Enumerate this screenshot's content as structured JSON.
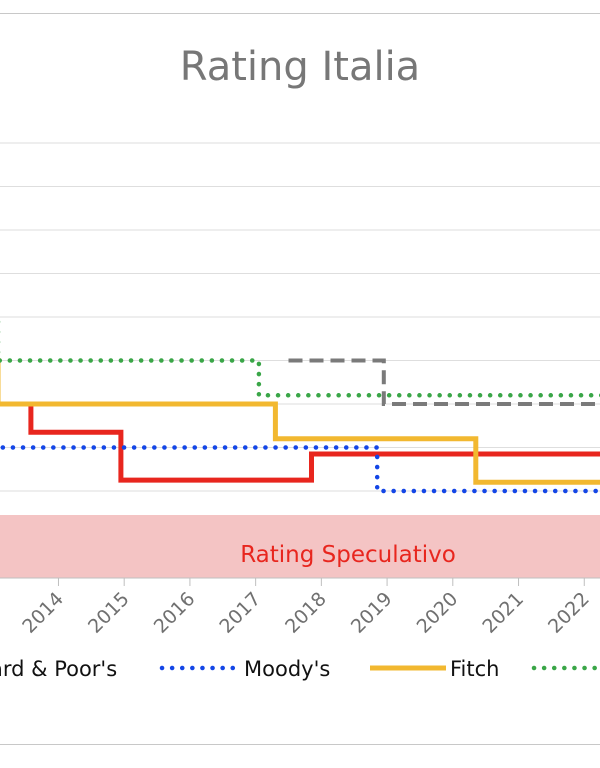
{
  "chart_data": {
    "type": "line",
    "title": "Rating Italia",
    "band": {
      "label": "Rating Speculativo",
      "color": "#f4c4c4"
    },
    "x_ticks": [
      "2014",
      "2015",
      "2016",
      "2017",
      "2018",
      "2019",
      "2020",
      "2021",
      "2022"
    ],
    "xlim": [
      2013.08,
      2022.27
    ],
    "ylim": [
      0,
      10
    ],
    "grid": true,
    "legend_position": "bottom",
    "series": [
      {
        "name": "Standard & Poor's",
        "legend_label": "ard & Poor's",
        "color": "#e8261e",
        "style": "solid",
        "points": [
          [
            2013.0,
            4.0
          ],
          [
            2013.58,
            4.0
          ],
          [
            2013.58,
            3.35
          ],
          [
            2014.95,
            3.35
          ],
          [
            2014.95,
            2.25
          ],
          [
            2017.85,
            2.25
          ],
          [
            2017.85,
            2.85
          ],
          [
            2022.3,
            2.85
          ]
        ]
      },
      {
        "name": "Moody's",
        "legend_label": "Moody's",
        "color": "#1446e6",
        "style": "dotted",
        "points": [
          [
            2013.0,
            3.0
          ],
          [
            2018.85,
            3.0
          ],
          [
            2018.85,
            2.0
          ],
          [
            2022.3,
            2.0
          ]
        ]
      },
      {
        "name": "Fitch",
        "legend_label": "Fitch",
        "color": "#f2b830",
        "style": "solid",
        "points": [
          [
            2013.0,
            5.0
          ],
          [
            2013.08,
            5.0
          ],
          [
            2013.08,
            4.0
          ],
          [
            2017.3,
            4.0
          ],
          [
            2017.3,
            3.2
          ],
          [
            2020.35,
            3.2
          ],
          [
            2020.35,
            2.2
          ],
          [
            2022.3,
            2.2
          ]
        ]
      },
      {
        "name": "",
        "legend_label": "",
        "color": "#3aa648",
        "style": "dotted",
        "points": [
          [
            2013.0,
            6.0
          ],
          [
            2013.08,
            6.0
          ],
          [
            2013.08,
            5.0
          ],
          [
            2017.05,
            5.0
          ],
          [
            2017.05,
            4.2
          ],
          [
            2022.3,
            4.2
          ]
        ]
      },
      {
        "name": "",
        "legend_label": "",
        "color": "#7a7a7a",
        "style": "dashed",
        "legend": false,
        "points": [
          [
            2017.5,
            5.0
          ],
          [
            2018.95,
            5.0
          ],
          [
            2018.95,
            4.0
          ],
          [
            2022.3,
            4.0
          ]
        ]
      }
    ]
  }
}
